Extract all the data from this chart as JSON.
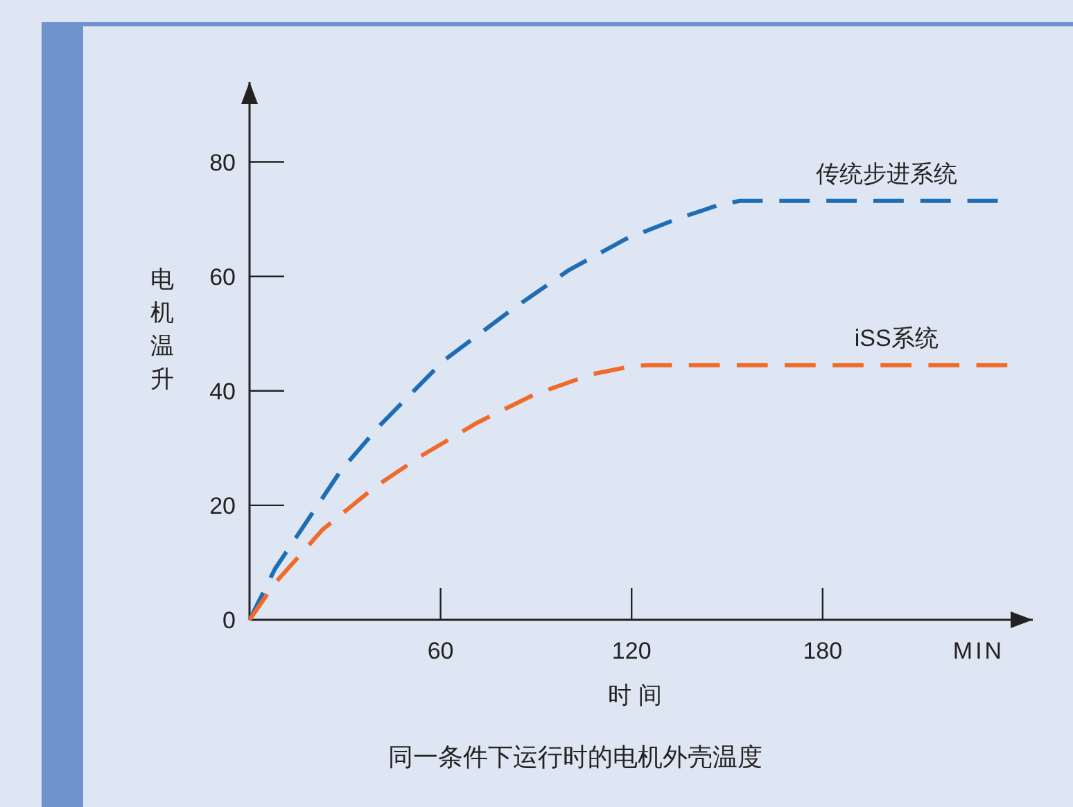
{
  "chart_data": {
    "type": "line",
    "title": "同一条件下运行时的电机外壳温度",
    "xlabel": "时 间",
    "ylabel": "电机温升",
    "annotations": [
      "MIN"
    ],
    "xlim": [
      0,
      246
    ],
    "ylim": [
      0,
      94
    ],
    "xticks": [
      60,
      120,
      180
    ],
    "yticks": [
      0,
      20,
      40,
      60,
      80
    ],
    "line_style": "dashed",
    "legend": false,
    "grid": false,
    "series": [
      {
        "name": "传统步进系统",
        "color": "#1f6db5",
        "x": [
          0,
          8,
          18,
          28.7,
          41,
          61,
          82.4,
          100,
          118,
          134,
          147,
          154,
          235
        ],
        "values": [
          0,
          8.9,
          17.2,
          26.1,
          34,
          45.3,
          54.2,
          61,
          66.5,
          70,
          72.4,
          73.2,
          73.2
        ]
      },
      {
        "name": "iSS系统",
        "color": "#f06a2a",
        "x": [
          0,
          8,
          23,
          39.4,
          53.8,
          71.7,
          89.6,
          107.5,
          120,
          125,
          238
        ],
        "values": [
          0,
          6.4,
          15.8,
          23.2,
          28.6,
          34.5,
          39.4,
          42.9,
          44.3,
          44.5,
          44.5
        ]
      }
    ]
  }
}
